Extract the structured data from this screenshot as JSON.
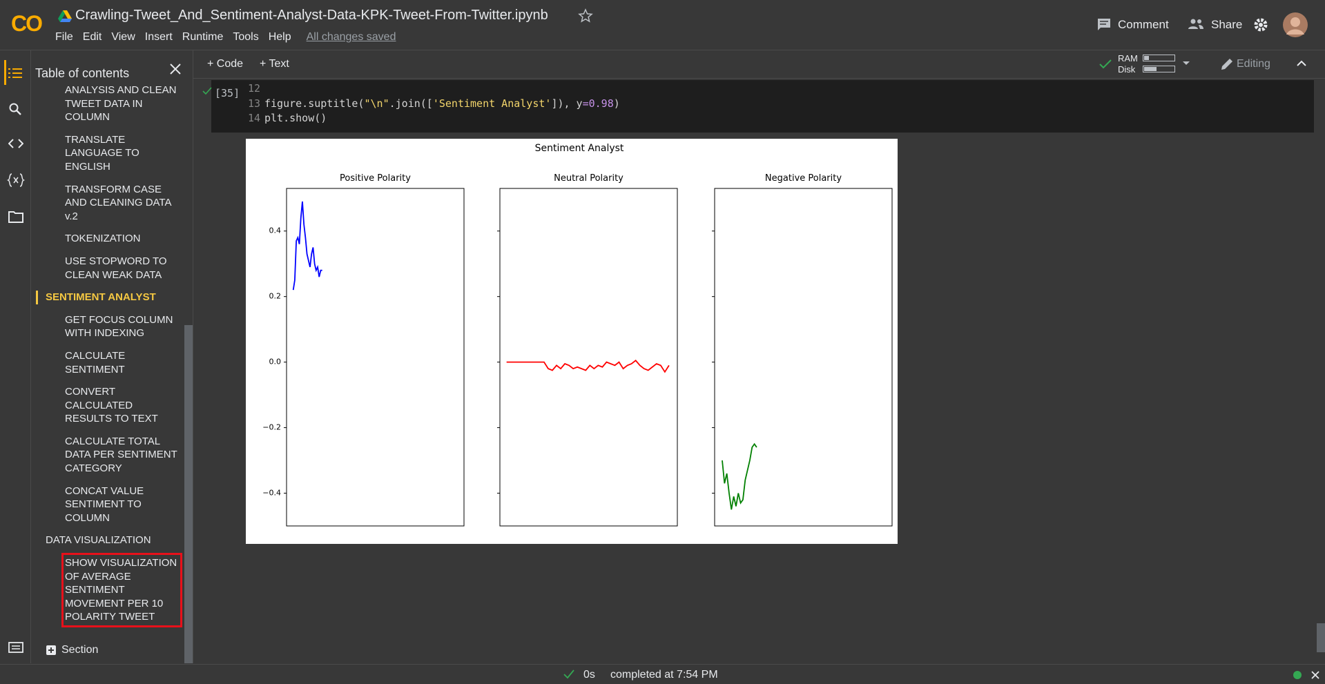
{
  "header": {
    "logo": "CO",
    "title": "Crawling-Tweet_And_Sentiment-Analyst-Data-KPK-Tweet-From-Twitter.ipynb",
    "menu": [
      "File",
      "Edit",
      "View",
      "Insert",
      "Runtime",
      "Tools",
      "Help"
    ],
    "saved": "All changes saved",
    "comment": "Comment",
    "share": "Share"
  },
  "toolbar": {
    "code": "Code",
    "text": "Text",
    "ram": "RAM",
    "disk": "Disk",
    "editing": "Editing"
  },
  "toc": {
    "title": "Table of contents",
    "section": "Section",
    "items": [
      {
        "label": "ANALYSIS AND CLEAN TWEET DATA IN COLUMN",
        "level": 2
      },
      {
        "label": "TRANSLATE LANGUAGE TO ENGLISH",
        "level": 2
      },
      {
        "label": "TRANSFORM CASE AND CLEANING DATA v.2",
        "level": 2
      },
      {
        "label": "TOKENIZATION",
        "level": 2
      },
      {
        "label": "USE STOPWORD TO CLEAN WEAK DATA",
        "level": 2
      },
      {
        "label": "SENTIMENT ANALYST",
        "level": 1,
        "active": true
      },
      {
        "label": "GET FOCUS COLUMN WITH INDEXING",
        "level": 2
      },
      {
        "label": "CALCULATE SENTIMENT",
        "level": 2
      },
      {
        "label": "CONVERT CALCULATED RESULTS TO TEXT",
        "level": 2
      },
      {
        "label": "CALCULATE TOTAL DATA PER SENTIMENT CATEGORY",
        "level": 2
      },
      {
        "label": "CONCAT VALUE SENTIMENT TO COLUMN",
        "level": 2
      },
      {
        "label": "DATA VISUALIZATION",
        "level": 1
      },
      {
        "label": "SHOW VISUALIZATION OF AVERAGE SENTIMENT MOVEMENT PER 10 POLARITY TWEET",
        "level": 2,
        "boxed": true
      }
    ]
  },
  "cell": {
    "exec_count": "[35]",
    "lines": [
      {
        "number": 12,
        "tokens": []
      },
      {
        "number": 13,
        "tokens": [
          {
            "text": "figure.suptitle(",
            "color": "#d4d4d4"
          },
          {
            "text": "\"\\n\"",
            "color": "#f3d56b"
          },
          {
            "text": ".join([",
            "color": "#d4d4d4"
          },
          {
            "text": "'Sentiment Analyst'",
            "color": "#f3d56b"
          },
          {
            "text": "]), y",
            "color": "#d4d4d4"
          },
          {
            "text": "=",
            "color": "#c792ea"
          },
          {
            "text": "0.98",
            "color": "#c792ea"
          },
          {
            "text": ")",
            "color": "#d4d4d4"
          }
        ]
      },
      {
        "number": 14,
        "tokens": [
          {
            "text": "plt.show()",
            "color": "#d4d4d4"
          }
        ]
      }
    ]
  },
  "status": {
    "time": "0s",
    "message": "completed at 7:54 PM"
  },
  "figure": {
    "title": "Sentiment Analyst"
  },
  "chart_data": [
    {
      "type": "line",
      "title": "Positive Polarity",
      "color": "#0000ff",
      "xlim": [
        -4.4,
        112
      ],
      "ylim": [
        -0.5,
        0.53
      ],
      "yticks": [
        {
          "value": -0.4,
          "label": "−0.4"
        },
        {
          "value": -0.2,
          "label": "−0.2"
        },
        {
          "value": 0,
          "label": "0.0"
        },
        0.2,
        0.4
      ],
      "values": [
        0.22,
        0.25,
        0.37,
        0.38,
        0.36,
        0.44,
        0.49,
        0.42,
        0.38,
        0.33,
        0.31,
        0.29,
        0.33,
        0.35,
        0.3,
        0.28,
        0.29,
        0.26,
        0.28,
        0.28
      ]
    },
    {
      "type": "line",
      "title": "Neutral Polarity",
      "color": "#ff0000",
      "xlim": [
        -1.6,
        41
      ],
      "ylim": [
        -0.5,
        0.53
      ],
      "yticks": [
        -0.4,
        -0.2,
        0,
        0.2,
        0.4
      ],
      "values": [
        0,
        0,
        0,
        0,
        0,
        0,
        0,
        0,
        0,
        0,
        -0.02,
        -0.025,
        -0.01,
        -0.02,
        -0.005,
        -0.01,
        -0.02,
        -0.015,
        -0.02,
        -0.025,
        -0.01,
        -0.02,
        -0.01,
        -0.015,
        0,
        -0.005,
        -0.01,
        0,
        -0.02,
        -0.01,
        -0.005,
        0.005,
        -0.01,
        -0.02,
        -0.025,
        -0.015,
        -0.005,
        -0.01,
        -0.03,
        -0.01
      ]
    },
    {
      "type": "line",
      "title": "Negative Polarity",
      "color": "#008000",
      "xlim": [
        -3.3,
        73.9
      ],
      "ylim": [
        -0.5,
        0.53
      ],
      "yticks": [
        -0.4,
        -0.2,
        0,
        0.2,
        0.4
      ],
      "values": [
        -0.3,
        -0.37,
        -0.34,
        -0.4,
        -0.45,
        -0.41,
        -0.44,
        -0.4,
        -0.43,
        -0.42,
        -0.36,
        -0.33,
        -0.3,
        -0.26,
        -0.25,
        -0.26
      ]
    }
  ]
}
